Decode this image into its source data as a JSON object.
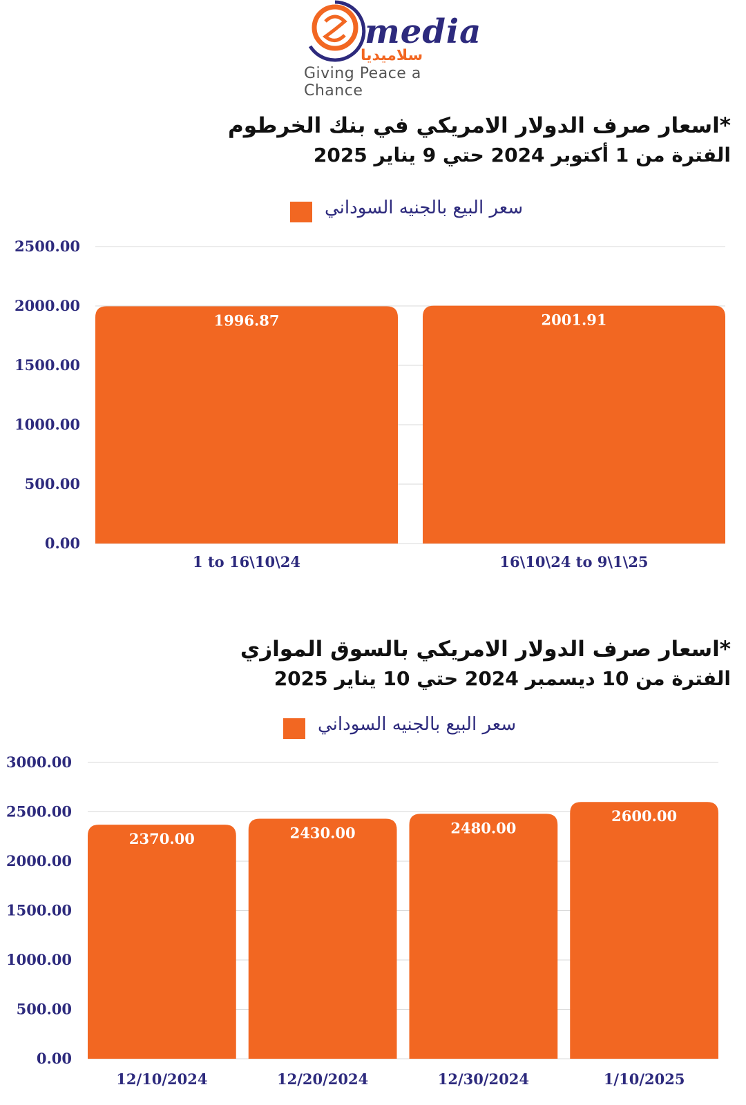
{
  "logo": {
    "word": "media",
    "arabic": "سلاميديا",
    "tagline": "Giving Peace a Chance",
    "colors": {
      "orange": "#f26722",
      "navy": "#2d2a7d"
    }
  },
  "chart_data": [
    {
      "type": "bar",
      "title_line1": "*اسعار صرف الدولار الامريكي في بنك الخرطوم",
      "title_line2": "الفترة من 1 أكتوبر 2024 حتي 9 يناير 2025",
      "legend": "سعر البيع بالجنيه السوداني",
      "categories": [
        "1 to 16\\10\\24",
        "16\\10\\24 to 9\\1\\25"
      ],
      "series": [
        {
          "name": "سعر البيع بالجنيه السوداني",
          "values": [
            1996.87,
            2001.91
          ]
        }
      ],
      "value_labels": [
        "1996.87",
        "2001.91"
      ],
      "yticks": [
        "0.00",
        "500.00",
        "1000.00",
        "1500.00",
        "2000.00",
        "2500.00"
      ],
      "ylim": [
        0,
        2500
      ],
      "bar_color": "#f26722",
      "grid": true
    },
    {
      "type": "bar",
      "title_line1": "*اسعار صرف الدولار الامريكي بالسوق الموازي",
      "title_line2": "الفترة من 10 ديسمبر 2024 حتي 10 يناير 2025",
      "legend": "سعر البيع بالجنيه السوداني",
      "categories": [
        "12/10/2024",
        "12/20/2024",
        "12/30/2024",
        "1/10/2025"
      ],
      "series": [
        {
          "name": "سعر البيع بالجنيه السوداني",
          "values": [
            2370.0,
            2430.0,
            2480.0,
            2600.0
          ]
        }
      ],
      "value_labels": [
        "2370.00",
        "2430.00",
        "2480.00",
        "2600.00"
      ],
      "yticks": [
        "0.00",
        "500.00",
        "1000.00",
        "1500.00",
        "2000.00",
        "2500.00",
        "3000.00"
      ],
      "ylim": [
        0,
        3000
      ],
      "bar_color": "#f26722",
      "grid": true
    }
  ]
}
